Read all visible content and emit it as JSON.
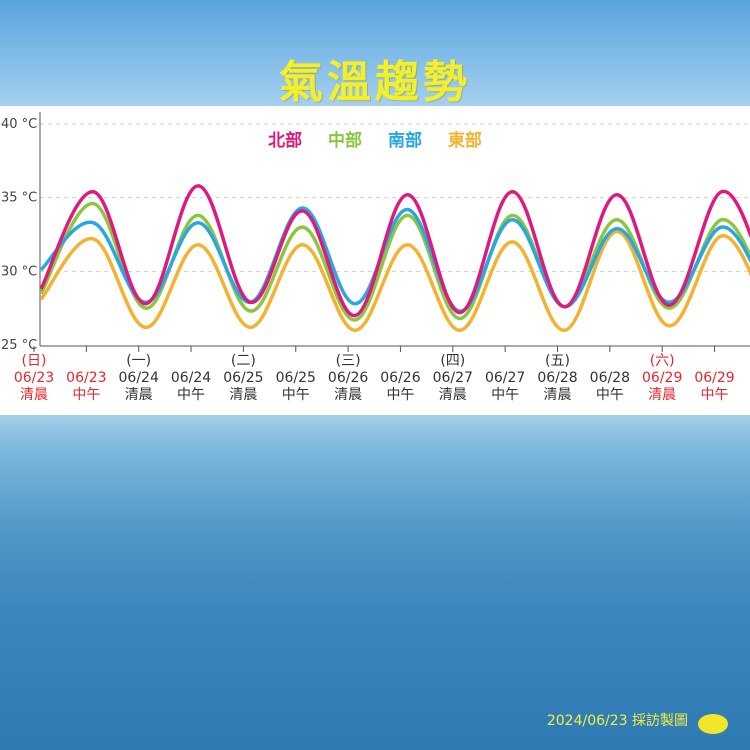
{
  "title": "氣溫趨勢",
  "credit": "2024/06/23 採訪製圖",
  "colors": {
    "north": "#e0197d",
    "central": "#8cc63f",
    "south": "#29a8e0",
    "east": "#f3b22f",
    "holiday_text": "#e8262d",
    "normal_text": "#333333"
  },
  "chart_data": {
    "type": "line",
    "title": "氣溫趨勢",
    "ylim": [
      25,
      40
    ],
    "yticks": [
      "40 °C",
      "35 °C",
      "30 °C",
      "25 °C"
    ],
    "ytick_values": [
      40,
      35,
      30,
      25
    ],
    "legend_position": "top-center",
    "categories": [
      {
        "weekday": "(日)",
        "date": "06/23",
        "time": "清晨",
        "holiday": true
      },
      {
        "weekday": "",
        "date": "06/23",
        "time": "中午",
        "holiday": true
      },
      {
        "weekday": "(一)",
        "date": "06/24",
        "time": "清晨",
        "holiday": false
      },
      {
        "weekday": "",
        "date": "06/24",
        "time": "中午",
        "holiday": false
      },
      {
        "weekday": "(二)",
        "date": "06/25",
        "time": "清晨",
        "holiday": false
      },
      {
        "weekday": "",
        "date": "06/25",
        "time": "中午",
        "holiday": false
      },
      {
        "weekday": "(三)",
        "date": "06/26",
        "time": "清晨",
        "holiday": false
      },
      {
        "weekday": "",
        "date": "06/26",
        "time": "中午",
        "holiday": false
      },
      {
        "weekday": "(四)",
        "date": "06/27",
        "time": "清晨",
        "holiday": false
      },
      {
        "weekday": "",
        "date": "06/27",
        "time": "中午",
        "holiday": false
      },
      {
        "weekday": "(五)",
        "date": "06/28",
        "time": "清晨",
        "holiday": false
      },
      {
        "weekday": "",
        "date": "06/28",
        "time": "中午",
        "holiday": false
      },
      {
        "weekday": "(六)",
        "date": "06/29",
        "time": "清晨",
        "holiday": true
      },
      {
        "weekday": "",
        "date": "06/29",
        "time": "中午",
        "holiday": true
      }
    ],
    "series": [
      {
        "name": "北部",
        "key": "north",
        "values": [
          28.8,
          35.4,
          27.8,
          35.8,
          27.9,
          34.1,
          27.0,
          35.2,
          27.2,
          35.4,
          27.6,
          35.2,
          27.7,
          35.4
        ]
      },
      {
        "name": "中部",
        "key": "central",
        "values": [
          28.5,
          34.6,
          27.5,
          33.8,
          27.3,
          33.0,
          26.7,
          33.8,
          26.8,
          33.8,
          27.6,
          33.5,
          27.5,
          33.5
        ]
      },
      {
        "name": "南部",
        "key": "south",
        "values": [
          30.1,
          33.3,
          27.9,
          33.3,
          27.9,
          34.3,
          27.8,
          34.2,
          27.3,
          33.5,
          27.6,
          32.9,
          27.9,
          33.0
        ]
      },
      {
        "name": "東部",
        "key": "east",
        "values": [
          28.1,
          32.2,
          26.2,
          31.8,
          26.2,
          31.8,
          26.0,
          31.8,
          26.0,
          32.0,
          26.0,
          32.7,
          26.3,
          32.4
        ]
      }
    ]
  }
}
